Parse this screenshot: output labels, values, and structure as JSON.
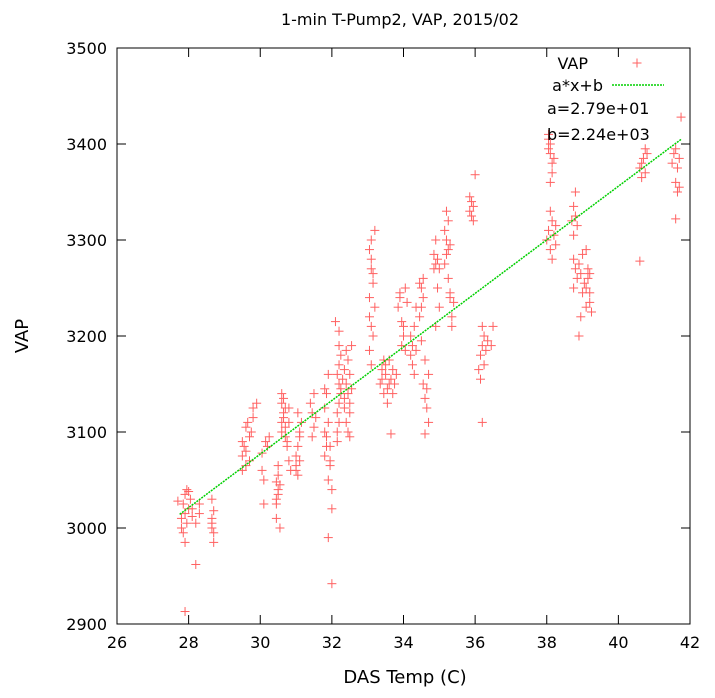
{
  "chart_data": {
    "type": "scatter",
    "title": "1-min T-Pump2, VAP, 2015/02",
    "xlabel": "DAS Temp (C)",
    "ylabel": "VAP",
    "xlim": [
      26,
      42
    ],
    "ylim": [
      2900,
      3500
    ],
    "x_ticks": [
      "26",
      "28",
      "30",
      "32",
      "34",
      "36",
      "38",
      "40",
      "42"
    ],
    "y_ticks": [
      "2900",
      "3000",
      "3100",
      "3200",
      "3300",
      "3400",
      "3500"
    ],
    "legend_position": "top-right",
    "grid": false,
    "colors": {
      "points": "#ff6060",
      "fit": "#00d000"
    },
    "fit": {
      "label": "a*x+b",
      "a": 27.9,
      "b": 2240,
      "x_range": [
        27.75,
        41.75
      ]
    },
    "annotations": [
      "a=2.79e+01",
      "b=2.24e+03"
    ],
    "series": [
      {
        "name": "VAP",
        "marker": "+",
        "points": [
          [
            27.8,
            3010
          ],
          [
            27.85,
            3025
          ],
          [
            27.9,
            3035
          ],
          [
            27.95,
            3040
          ],
          [
            27.8,
            3000
          ],
          [
            27.9,
            3015
          ],
          [
            28.0,
            3020
          ],
          [
            28.05,
            3030
          ],
          [
            27.95,
            3005
          ],
          [
            27.85,
            2995
          ],
          [
            27.7,
            3028
          ],
          [
            28.1,
            3012
          ],
          [
            27.9,
            2985
          ],
          [
            28.0,
            3038
          ],
          [
            27.9,
            2913
          ],
          [
            28.2,
            2962
          ],
          [
            28.3,
            3015
          ],
          [
            28.2,
            3005
          ],
          [
            28.1,
            3020
          ],
          [
            28.3,
            3025
          ],
          [
            28.65,
            3010
          ],
          [
            28.65,
            3000
          ],
          [
            28.7,
            2995
          ],
          [
            28.7,
            3018
          ],
          [
            28.65,
            3030
          ],
          [
            28.7,
            2985
          ],
          [
            28.65,
            3005
          ],
          [
            29.5,
            3060
          ],
          [
            29.6,
            3080
          ],
          [
            29.7,
            3095
          ],
          [
            29.5,
            3075
          ],
          [
            29.6,
            3105
          ],
          [
            29.65,
            3110
          ],
          [
            29.55,
            3085
          ],
          [
            29.7,
            3070
          ],
          [
            29.6,
            3065
          ],
          [
            29.5,
            3090
          ],
          [
            29.8,
            3115
          ],
          [
            29.8,
            3125
          ],
          [
            29.75,
            3100
          ],
          [
            29.9,
            3130
          ],
          [
            30.05,
            3060
          ],
          [
            30.1,
            3050
          ],
          [
            30.05,
            3078
          ],
          [
            30.15,
            3090
          ],
          [
            30.1,
            3025
          ],
          [
            30.2,
            3085
          ],
          [
            30.25,
            3095
          ],
          [
            30.45,
            3010
          ],
          [
            30.45,
            3030
          ],
          [
            30.5,
            3040
          ],
          [
            30.5,
            3055
          ],
          [
            30.55,
            3045
          ],
          [
            30.5,
            3065
          ],
          [
            30.45,
            3025
          ],
          [
            30.55,
            3000
          ],
          [
            30.5,
            3035
          ],
          [
            30.45,
            3048
          ],
          [
            30.6,
            3100
          ],
          [
            30.6,
            3110
          ],
          [
            30.65,
            3120
          ],
          [
            30.7,
            3125
          ],
          [
            30.6,
            3130
          ],
          [
            30.65,
            3115
          ],
          [
            30.7,
            3105
          ],
          [
            30.65,
            3135
          ],
          [
            30.6,
            3140
          ],
          [
            30.7,
            3095
          ],
          [
            30.75,
            3085
          ],
          [
            30.8,
            3125
          ],
          [
            30.8,
            3070
          ],
          [
            30.75,
            3090
          ],
          [
            30.85,
            3060
          ],
          [
            30.8,
            3110
          ],
          [
            31.0,
            3075
          ],
          [
            31.05,
            3085
          ],
          [
            31.1,
            3095
          ],
          [
            31.0,
            3065
          ],
          [
            31.1,
            3100
          ],
          [
            31.15,
            3110
          ],
          [
            31.05,
            3120
          ],
          [
            31.0,
            3060
          ],
          [
            31.1,
            3070
          ],
          [
            31.05,
            3055
          ],
          [
            31.4,
            3130
          ],
          [
            31.45,
            3120
          ],
          [
            31.5,
            3105
          ],
          [
            31.45,
            3095
          ],
          [
            31.5,
            3140
          ],
          [
            31.55,
            3115
          ],
          [
            31.8,
            3075
          ],
          [
            31.85,
            3095
          ],
          [
            31.9,
            3110
          ],
          [
            31.8,
            3125
          ],
          [
            31.85,
            3140
          ],
          [
            31.9,
            3160
          ],
          [
            31.8,
            3145
          ],
          [
            31.85,
            3085
          ],
          [
            31.9,
            3050
          ],
          [
            31.8,
            3100
          ],
          [
            31.95,
            3085
          ],
          [
            31.95,
            3070
          ],
          [
            31.9,
            2990
          ],
          [
            32.0,
            3020
          ],
          [
            32.0,
            2942
          ],
          [
            32.0,
            3040
          ],
          [
            31.95,
            3065
          ],
          [
            32.15,
            3120
          ],
          [
            32.2,
            3130
          ],
          [
            32.25,
            3140
          ],
          [
            32.2,
            3150
          ],
          [
            32.15,
            3160
          ],
          [
            32.2,
            3170
          ],
          [
            32.25,
            3180
          ],
          [
            32.2,
            3110
          ],
          [
            32.15,
            3100
          ],
          [
            32.2,
            3190
          ],
          [
            32.1,
            3215
          ],
          [
            32.2,
            3205
          ],
          [
            32.25,
            3145
          ],
          [
            32.15,
            3090
          ],
          [
            32.3,
            3155
          ],
          [
            32.35,
            3125
          ],
          [
            32.4,
            3110
          ],
          [
            32.45,
            3140
          ],
          [
            32.4,
            3150
          ],
          [
            32.35,
            3165
          ],
          [
            32.45,
            3175
          ],
          [
            32.4,
            3185
          ],
          [
            32.35,
            3135
          ],
          [
            32.5,
            3120
          ],
          [
            32.45,
            3100
          ],
          [
            32.5,
            3130
          ],
          [
            32.55,
            3145
          ],
          [
            32.5,
            3160
          ],
          [
            32.55,
            3190
          ],
          [
            32.5,
            3095
          ],
          [
            33.05,
            3290
          ],
          [
            33.1,
            3300
          ],
          [
            33.1,
            3270
          ],
          [
            33.15,
            3255
          ],
          [
            33.05,
            3240
          ],
          [
            33.1,
            3210
          ],
          [
            33.15,
            3200
          ],
          [
            33.05,
            3185
          ],
          [
            33.1,
            3280
          ],
          [
            33.2,
            3310
          ],
          [
            33.1,
            3170
          ],
          [
            33.2,
            3230
          ],
          [
            33.15,
            3265
          ],
          [
            33.05,
            3220
          ],
          [
            33.35,
            3150
          ],
          [
            33.4,
            3165
          ],
          [
            33.45,
            3175
          ],
          [
            33.4,
            3155
          ],
          [
            33.5,
            3160
          ],
          [
            33.45,
            3140
          ],
          [
            33.55,
            3145
          ],
          [
            33.5,
            3170
          ],
          [
            33.6,
            3150
          ],
          [
            33.55,
            3130
          ],
          [
            33.65,
            3155
          ],
          [
            33.7,
            3165
          ],
          [
            33.75,
            3150
          ],
          [
            33.7,
            3140
          ],
          [
            33.8,
            3160
          ],
          [
            33.6,
            3175
          ],
          [
            33.65,
            3098
          ],
          [
            33.85,
            3230
          ],
          [
            33.9,
            3240
          ],
          [
            33.95,
            3215
          ],
          [
            34.0,
            3210
          ],
          [
            33.95,
            3190
          ],
          [
            34.05,
            3250
          ],
          [
            34.1,
            3235
          ],
          [
            33.9,
            3245
          ],
          [
            34.0,
            3200
          ],
          [
            34.05,
            3185
          ],
          [
            34.2,
            3180
          ],
          [
            34.25,
            3190
          ],
          [
            34.3,
            3210
          ],
          [
            34.35,
            3230
          ],
          [
            34.3,
            3160
          ],
          [
            34.2,
            3200
          ],
          [
            34.35,
            3185
          ],
          [
            34.25,
            3170
          ],
          [
            34.45,
            3255
          ],
          [
            34.5,
            3250
          ],
          [
            34.55,
            3240
          ],
          [
            34.5,
            3230
          ],
          [
            34.45,
            3220
          ],
          [
            34.55,
            3260
          ],
          [
            34.5,
            3195
          ],
          [
            34.6,
            3175
          ],
          [
            34.55,
            3150
          ],
          [
            34.6,
            3135
          ],
          [
            34.65,
            3145
          ],
          [
            34.7,
            3160
          ],
          [
            34.65,
            3125
          ],
          [
            34.7,
            3110
          ],
          [
            34.6,
            3098
          ],
          [
            34.85,
            3270
          ],
          [
            34.9,
            3275
          ],
          [
            34.95,
            3280
          ],
          [
            34.85,
            3285
          ],
          [
            34.9,
            3300
          ],
          [
            35.0,
            3270
          ],
          [
            34.95,
            3250
          ],
          [
            35.0,
            3230
          ],
          [
            34.9,
            3210
          ],
          [
            35.15,
            3310
          ],
          [
            35.2,
            3300
          ],
          [
            35.25,
            3290
          ],
          [
            35.2,
            3285
          ],
          [
            35.15,
            3275
          ],
          [
            35.25,
            3320
          ],
          [
            35.3,
            3295
          ],
          [
            35.2,
            3330
          ],
          [
            35.25,
            3260
          ],
          [
            35.3,
            3240
          ],
          [
            35.35,
            3220
          ],
          [
            35.4,
            3235
          ],
          [
            35.35,
            3210
          ],
          [
            35.3,
            3245
          ],
          [
            35.85,
            3330
          ],
          [
            35.9,
            3340
          ],
          [
            35.95,
            3335
          ],
          [
            35.9,
            3325
          ],
          [
            35.85,
            3345
          ],
          [
            36.0,
            3368
          ],
          [
            35.95,
            3320
          ],
          [
            36.1,
            3165
          ],
          [
            36.15,
            3180
          ],
          [
            36.2,
            3190
          ],
          [
            36.25,
            3200
          ],
          [
            36.2,
            3210
          ],
          [
            36.15,
            3155
          ],
          [
            36.25,
            3170
          ],
          [
            36.3,
            3185
          ],
          [
            36.2,
            3110
          ],
          [
            36.35,
            3195
          ],
          [
            36.5,
            3210
          ],
          [
            36.45,
            3190
          ],
          [
            38.05,
            3410
          ],
          [
            38.1,
            3390
          ],
          [
            38.15,
            3380
          ],
          [
            38.1,
            3400
          ],
          [
            38.05,
            3395
          ],
          [
            38.15,
            3370
          ],
          [
            38.1,
            3360
          ],
          [
            38.2,
            3385
          ],
          [
            38.05,
            3405
          ],
          [
            38.0,
            3300
          ],
          [
            38.05,
            3310
          ],
          [
            38.1,
            3290
          ],
          [
            38.15,
            3320
          ],
          [
            38.2,
            3305
          ],
          [
            38.25,
            3315
          ],
          [
            38.15,
            3280
          ],
          [
            38.1,
            3330
          ],
          [
            38.25,
            3295
          ],
          [
            38.7,
            3320
          ],
          [
            38.75,
            3335
          ],
          [
            38.8,
            3350
          ],
          [
            38.75,
            3305
          ],
          [
            38.8,
            3325
          ],
          [
            38.85,
            3315
          ],
          [
            38.75,
            3280
          ],
          [
            38.8,
            3270
          ],
          [
            38.85,
            3260
          ],
          [
            38.9,
            3275
          ],
          [
            38.95,
            3265
          ],
          [
            39.0,
            3285
          ],
          [
            39.05,
            3255
          ],
          [
            39.1,
            3250
          ],
          [
            39.15,
            3260
          ],
          [
            39.2,
            3245
          ],
          [
            39.15,
            3270
          ],
          [
            39.1,
            3290
          ],
          [
            38.9,
            3200
          ],
          [
            38.95,
            3220
          ],
          [
            39.1,
            3230
          ],
          [
            39.2,
            3235
          ],
          [
            39.25,
            3225
          ],
          [
            39.0,
            3245
          ],
          [
            38.75,
            3250
          ],
          [
            39.2,
            3265
          ],
          [
            40.6,
            3375
          ],
          [
            40.65,
            3380
          ],
          [
            40.7,
            3385
          ],
          [
            40.75,
            3370
          ],
          [
            40.8,
            3390
          ],
          [
            40.65,
            3365
          ],
          [
            40.75,
            3395
          ],
          [
            40.6,
            3278
          ],
          [
            41.5,
            3380
          ],
          [
            41.55,
            3390
          ],
          [
            41.6,
            3395
          ],
          [
            41.65,
            3375
          ],
          [
            41.7,
            3385
          ],
          [
            41.6,
            3360
          ],
          [
            41.65,
            3350
          ],
          [
            41.7,
            3355
          ],
          [
            41.75,
            3428
          ],
          [
            41.6,
            3322
          ]
        ]
      }
    ]
  }
}
